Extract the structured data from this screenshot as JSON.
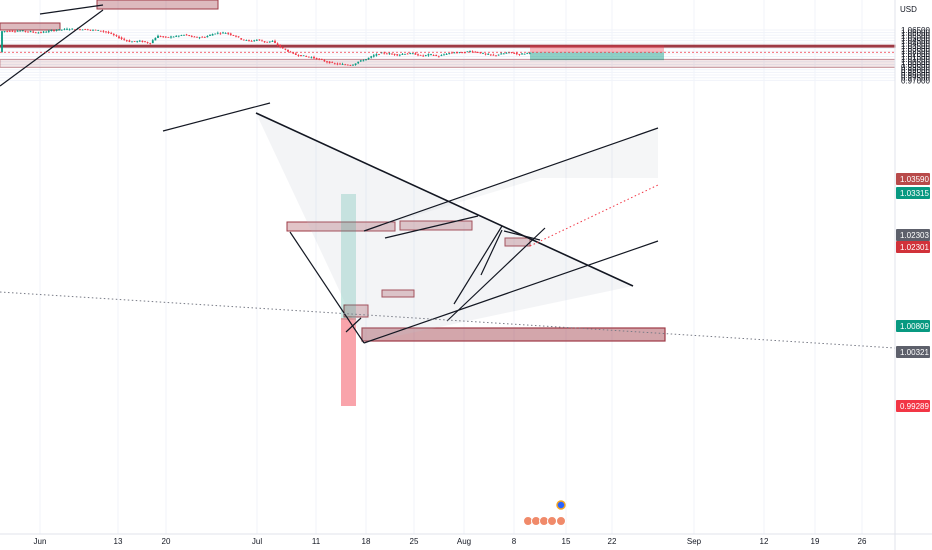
{
  "chart_data": {
    "type": "candlestick",
    "currency_label": "USD",
    "y_axis": {
      "min": 0.97,
      "max": 1.069,
      "ticks": [
        "1.06500",
        "1.06000",
        "1.05500",
        "1.05000",
        "1.04500",
        "1.04000",
        "1.03500",
        "1.03000",
        "1.02500",
        "1.02000",
        "1.01500",
        "1.01000",
        "1.00500",
        "1.00000",
        "0.99500",
        "0.99000",
        "0.98500",
        "0.98000",
        "0.97500",
        "0.97000"
      ]
    },
    "x_axis": {
      "labels": [
        "Jun",
        "13",
        "20",
        "Jul",
        "11",
        "18",
        "25",
        "Aug",
        "8",
        "15",
        "22",
        "Sep",
        "12",
        "19",
        "26"
      ]
    },
    "price_tags": [
      {
        "label": "1.03590",
        "value": 1.0359,
        "color": "#b84a4a"
      },
      {
        "label": "1.03315",
        "value": 1.03315,
        "color": "#089981"
      },
      {
        "label": "1.02303",
        "value": 1.02303,
        "color": "#5d606b"
      },
      {
        "label": "1.02301",
        "value": 1.02301,
        "color": "#d1323a"
      },
      {
        "label": "1.00809",
        "value": 1.00809,
        "color": "#089981"
      },
      {
        "label": "1.00321",
        "value": 1.00321,
        "color": "#5d606b"
      },
      {
        "label": "0.99289",
        "value": 0.99289,
        "color": "#f23645"
      }
    ],
    "zones": [
      {
        "kind": "resistance",
        "from": 1.03315,
        "to": 1.0359
      },
      {
        "kind": "support",
        "from": 0.9945,
        "to": 1.0095
      }
    ],
    "position": {
      "entry": 1.02301,
      "stop": 1.0359,
      "target": 1.00809
    },
    "colors": {
      "up": "#089981",
      "down": "#f23645",
      "zone": "#9e3a45"
    }
  }
}
